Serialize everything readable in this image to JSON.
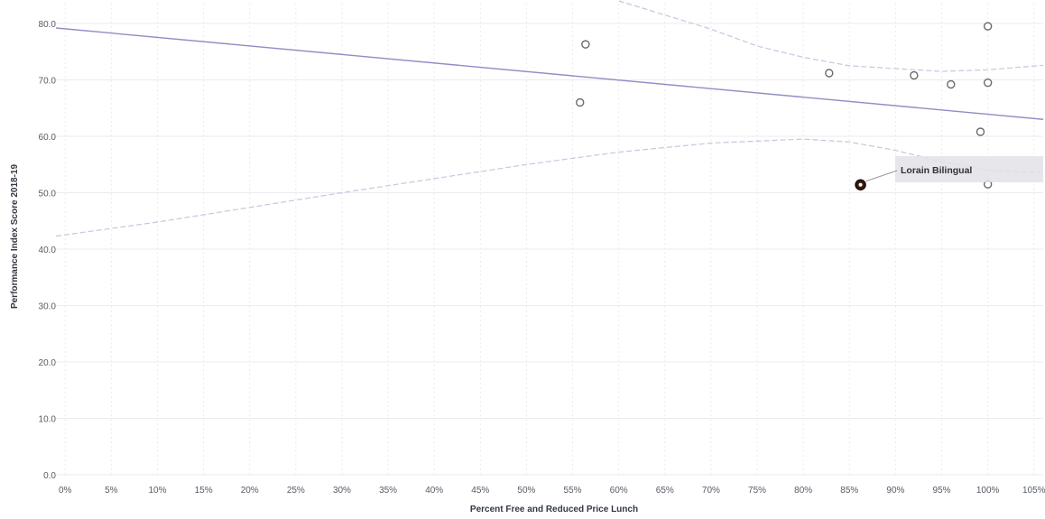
{
  "chart_data": {
    "type": "scatter",
    "xlabel": "Percent Free and Reduced Price Lunch",
    "ylabel": "Performance Index Score 2018-19",
    "xlim": [
      -1,
      106
    ],
    "ylim": [
      0,
      80
    ],
    "x_ticks": [
      0,
      5,
      10,
      15,
      20,
      25,
      30,
      35,
      40,
      45,
      50,
      55,
      60,
      65,
      70,
      75,
      80,
      85,
      90,
      95,
      100,
      105
    ],
    "x_tick_labels": [
      "0%",
      "5%",
      "10%",
      "15%",
      "20%",
      "25%",
      "30%",
      "35%",
      "40%",
      "45%",
      "50%",
      "55%",
      "60%",
      "65%",
      "70%",
      "75%",
      "80%",
      "85%",
      "90%",
      "95%",
      "100%",
      "105%"
    ],
    "y_ticks": [
      0,
      10,
      20,
      30,
      40,
      50,
      60,
      70,
      80
    ],
    "y_tick_labels": [
      "0.0",
      "10.0",
      "20.0",
      "30.0",
      "40.0",
      "50.0",
      "60.0",
      "70.0",
      "80.0"
    ],
    "grid": true,
    "points": [
      {
        "x": 55.8,
        "y": 66.0
      },
      {
        "x": 56.4,
        "y": 76.3
      },
      {
        "x": 82.8,
        "y": 71.2
      },
      {
        "x": 92.0,
        "y": 70.8
      },
      {
        "x": 96.0,
        "y": 69.2
      },
      {
        "x": 99.2,
        "y": 60.8
      },
      {
        "x": 100.0,
        "y": 79.5
      },
      {
        "x": 100.0,
        "y": 69.5
      },
      {
        "x": 100.0,
        "y": 51.5
      }
    ],
    "highlight": {
      "x": 86.2,
      "y": 51.4,
      "label": "Lorain Bilingual"
    },
    "trend_line": {
      "x": [
        -1,
        106
      ],
      "y": [
        79.2,
        63.0
      ]
    },
    "confidence_upper": {
      "x": [
        60,
        65,
        70,
        75,
        80,
        85,
        90,
        95,
        100,
        106
      ],
      "y": [
        84.0,
        81.5,
        79.0,
        76.0,
        74.0,
        72.5,
        72.0,
        71.5,
        71.8,
        72.6
      ]
    },
    "confidence_lower": {
      "x": [
        -1,
        10,
        20,
        30,
        40,
        50,
        60,
        70,
        80,
        85,
        90,
        95,
        100,
        106
      ],
      "y": [
        42.3,
        44.8,
        47.4,
        50.0,
        52.5,
        55.0,
        57.2,
        58.8,
        59.5,
        59.0,
        57.5,
        55.5,
        54.0,
        53.5
      ]
    },
    "colors": {
      "trend": "#8e8ec4",
      "band": "#c6c6de",
      "point": "#6b6b6b",
      "highlight_fill": "#3a1a10",
      "grid": "#ebebf0"
    }
  }
}
